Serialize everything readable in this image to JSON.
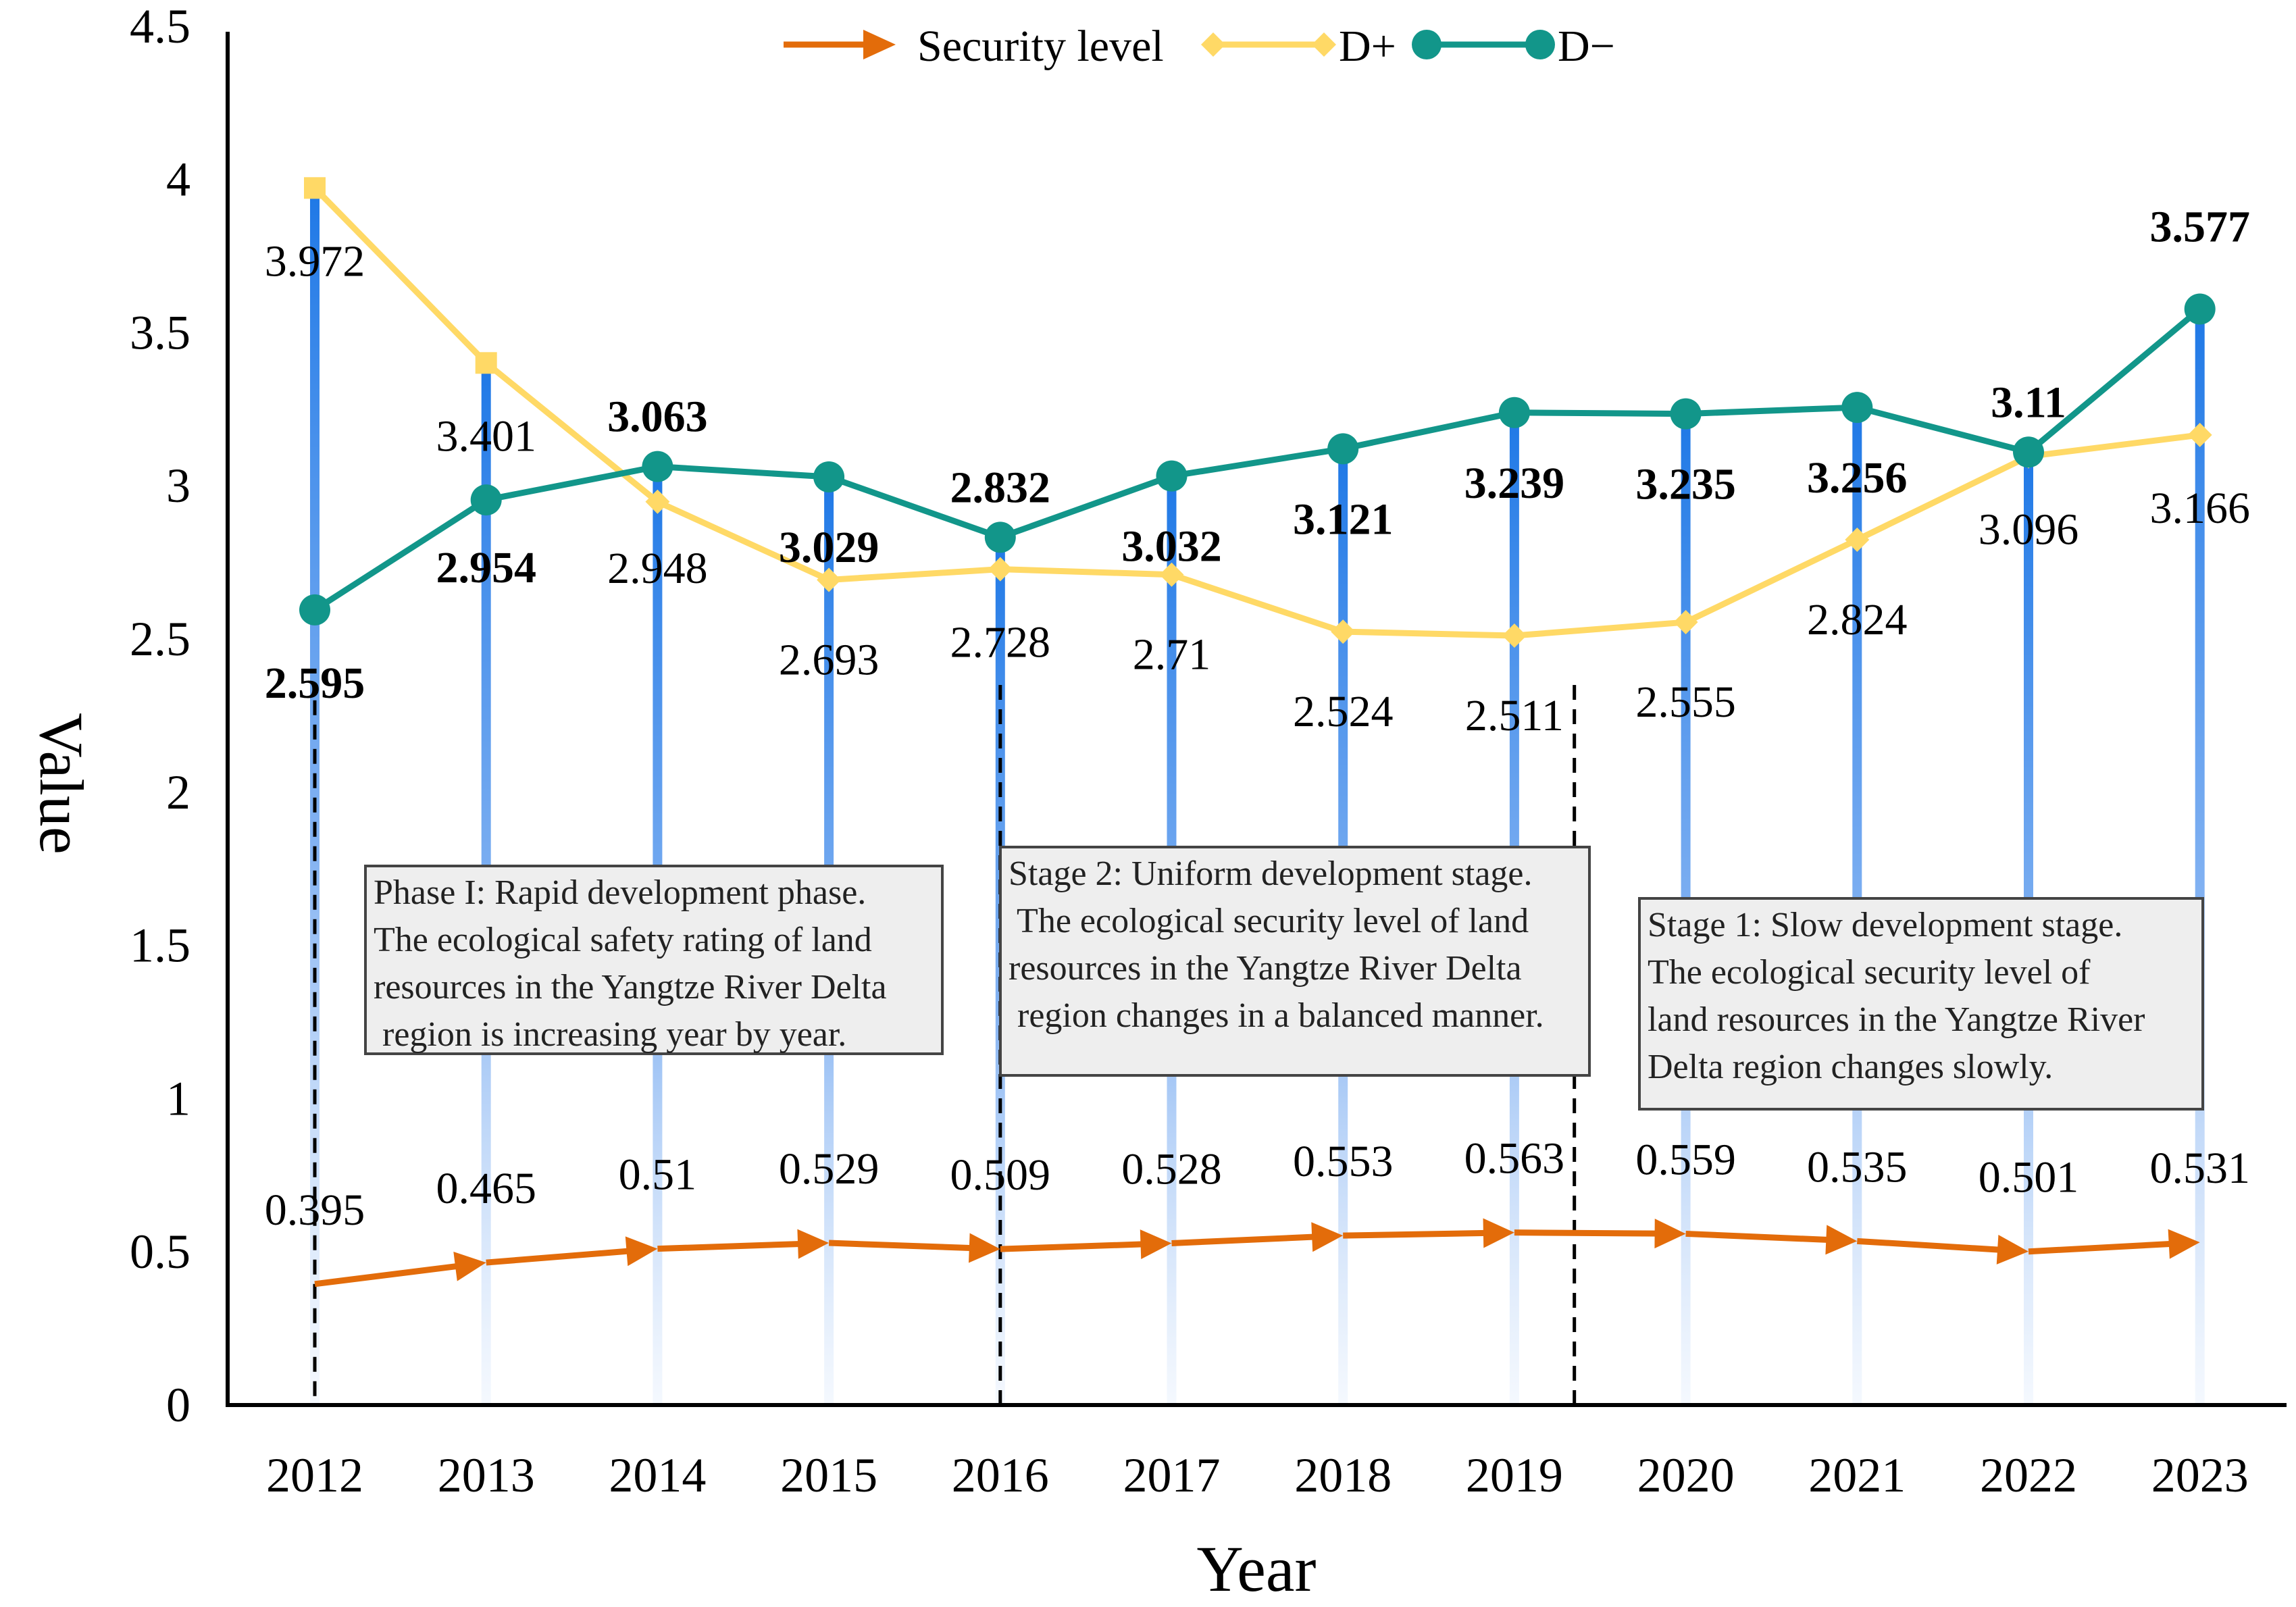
{
  "chart_data": {
    "type": "line",
    "xlabel": "Year",
    "ylabel": "Value",
    "ylim": [
      0,
      4.5
    ],
    "yticks": [
      "0",
      "0.5",
      "1",
      "1.5",
      "2",
      "2.5",
      "3",
      "3.5",
      "4",
      "4.5"
    ],
    "categories": [
      "2012",
      "2013",
      "2014",
      "2015",
      "2016",
      "2017",
      "2018",
      "2019",
      "2020",
      "2021",
      "2022",
      "2023"
    ],
    "series": [
      {
        "name": "Security level",
        "color": "#e36c0a",
        "values": [
          0.395,
          0.465,
          0.51,
          0.529,
          0.509,
          0.528,
          0.553,
          0.563,
          0.559,
          0.535,
          0.501,
          0.531
        ],
        "labels": [
          "0.395",
          "0.465",
          "0.51",
          "0.529",
          "0.509",
          "0.528",
          "0.553",
          "0.563",
          "0.559",
          "0.535",
          "0.501",
          "0.531"
        ]
      },
      {
        "name": "D+",
        "color": "#ffd966",
        "values": [
          3.972,
          3.401,
          2.948,
          2.693,
          2.728,
          2.71,
          2.524,
          2.511,
          2.555,
          2.824,
          3.096,
          3.166
        ],
        "labels": [
          "3.972",
          "3.401",
          "2.948",
          "2.693",
          "2.728",
          "2.71",
          "2.524",
          "2.511",
          "2.555",
          "2.824",
          "3.096",
          "3.166"
        ]
      },
      {
        "name": "D−",
        "color": "#12968a",
        "values": [
          2.595,
          2.954,
          3.063,
          3.029,
          2.832,
          3.032,
          3.121,
          3.239,
          3.235,
          3.256,
          3.11,
          3.577
        ],
        "labels": [
          "2.595",
          "2.954",
          "3.063",
          "3.029",
          "2.832",
          "3.032",
          "3.121",
          "3.239",
          "3.235",
          "3.256",
          "3.11",
          "3.577"
        ]
      }
    ],
    "annotations": [
      {
        "lines": [
          "Phase I: Rapid development phase.",
          "The ecological safety rating of land",
          "resources in the Yangtze River Delta",
          " region is increasing year by year."
        ]
      },
      {
        "lines": [
          "Stage 2: Uniform development stage.",
          " The ecological security level of land",
          "resources in the Yangtze River Delta",
          " region changes in a balanced manner."
        ]
      },
      {
        "lines": [
          "Stage 1: Slow development stage.",
          "The ecological security level of",
          "land resources in the Yangtze River",
          "Delta region changes slowly."
        ]
      }
    ],
    "legend": [
      "Security level",
      "D+",
      "D−"
    ]
  }
}
